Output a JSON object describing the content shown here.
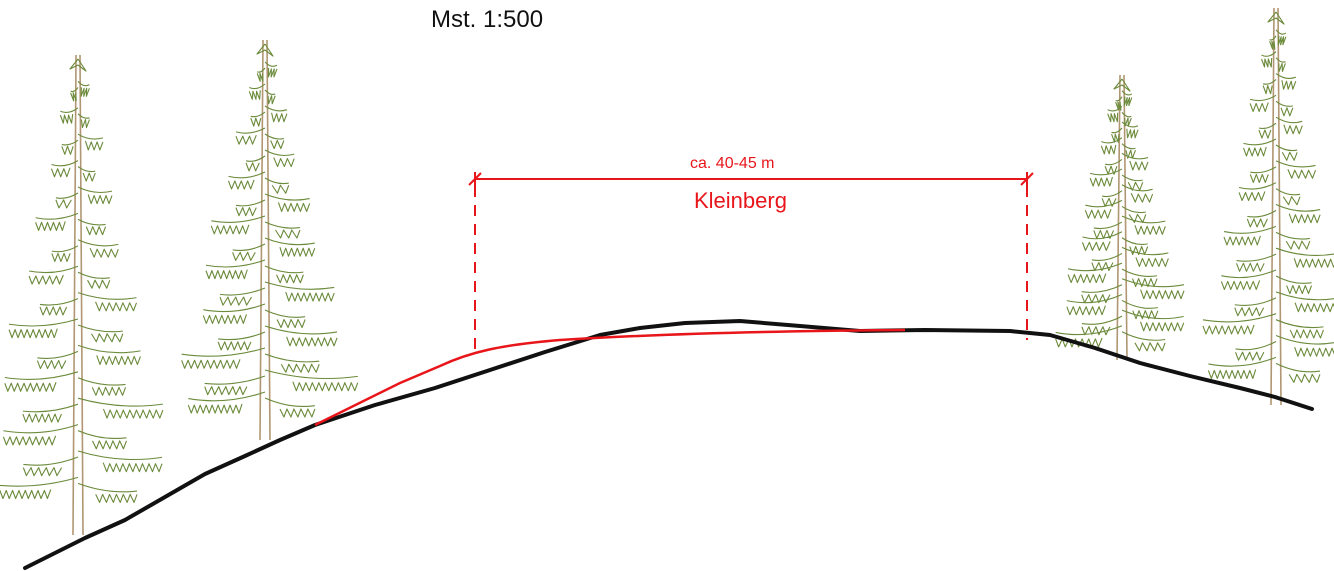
{
  "scale_label": "Mst. 1:500",
  "dimension_label": "ca. 40-45 m",
  "feature_name": "Kleinberg",
  "colors": {
    "terrain": "#111111",
    "proposed_profile": "#e8161b",
    "tree_branches": "#6b8a3a",
    "tree_trunk": "#b09672"
  },
  "icons": [
    "spruce-tree-icon"
  ]
}
